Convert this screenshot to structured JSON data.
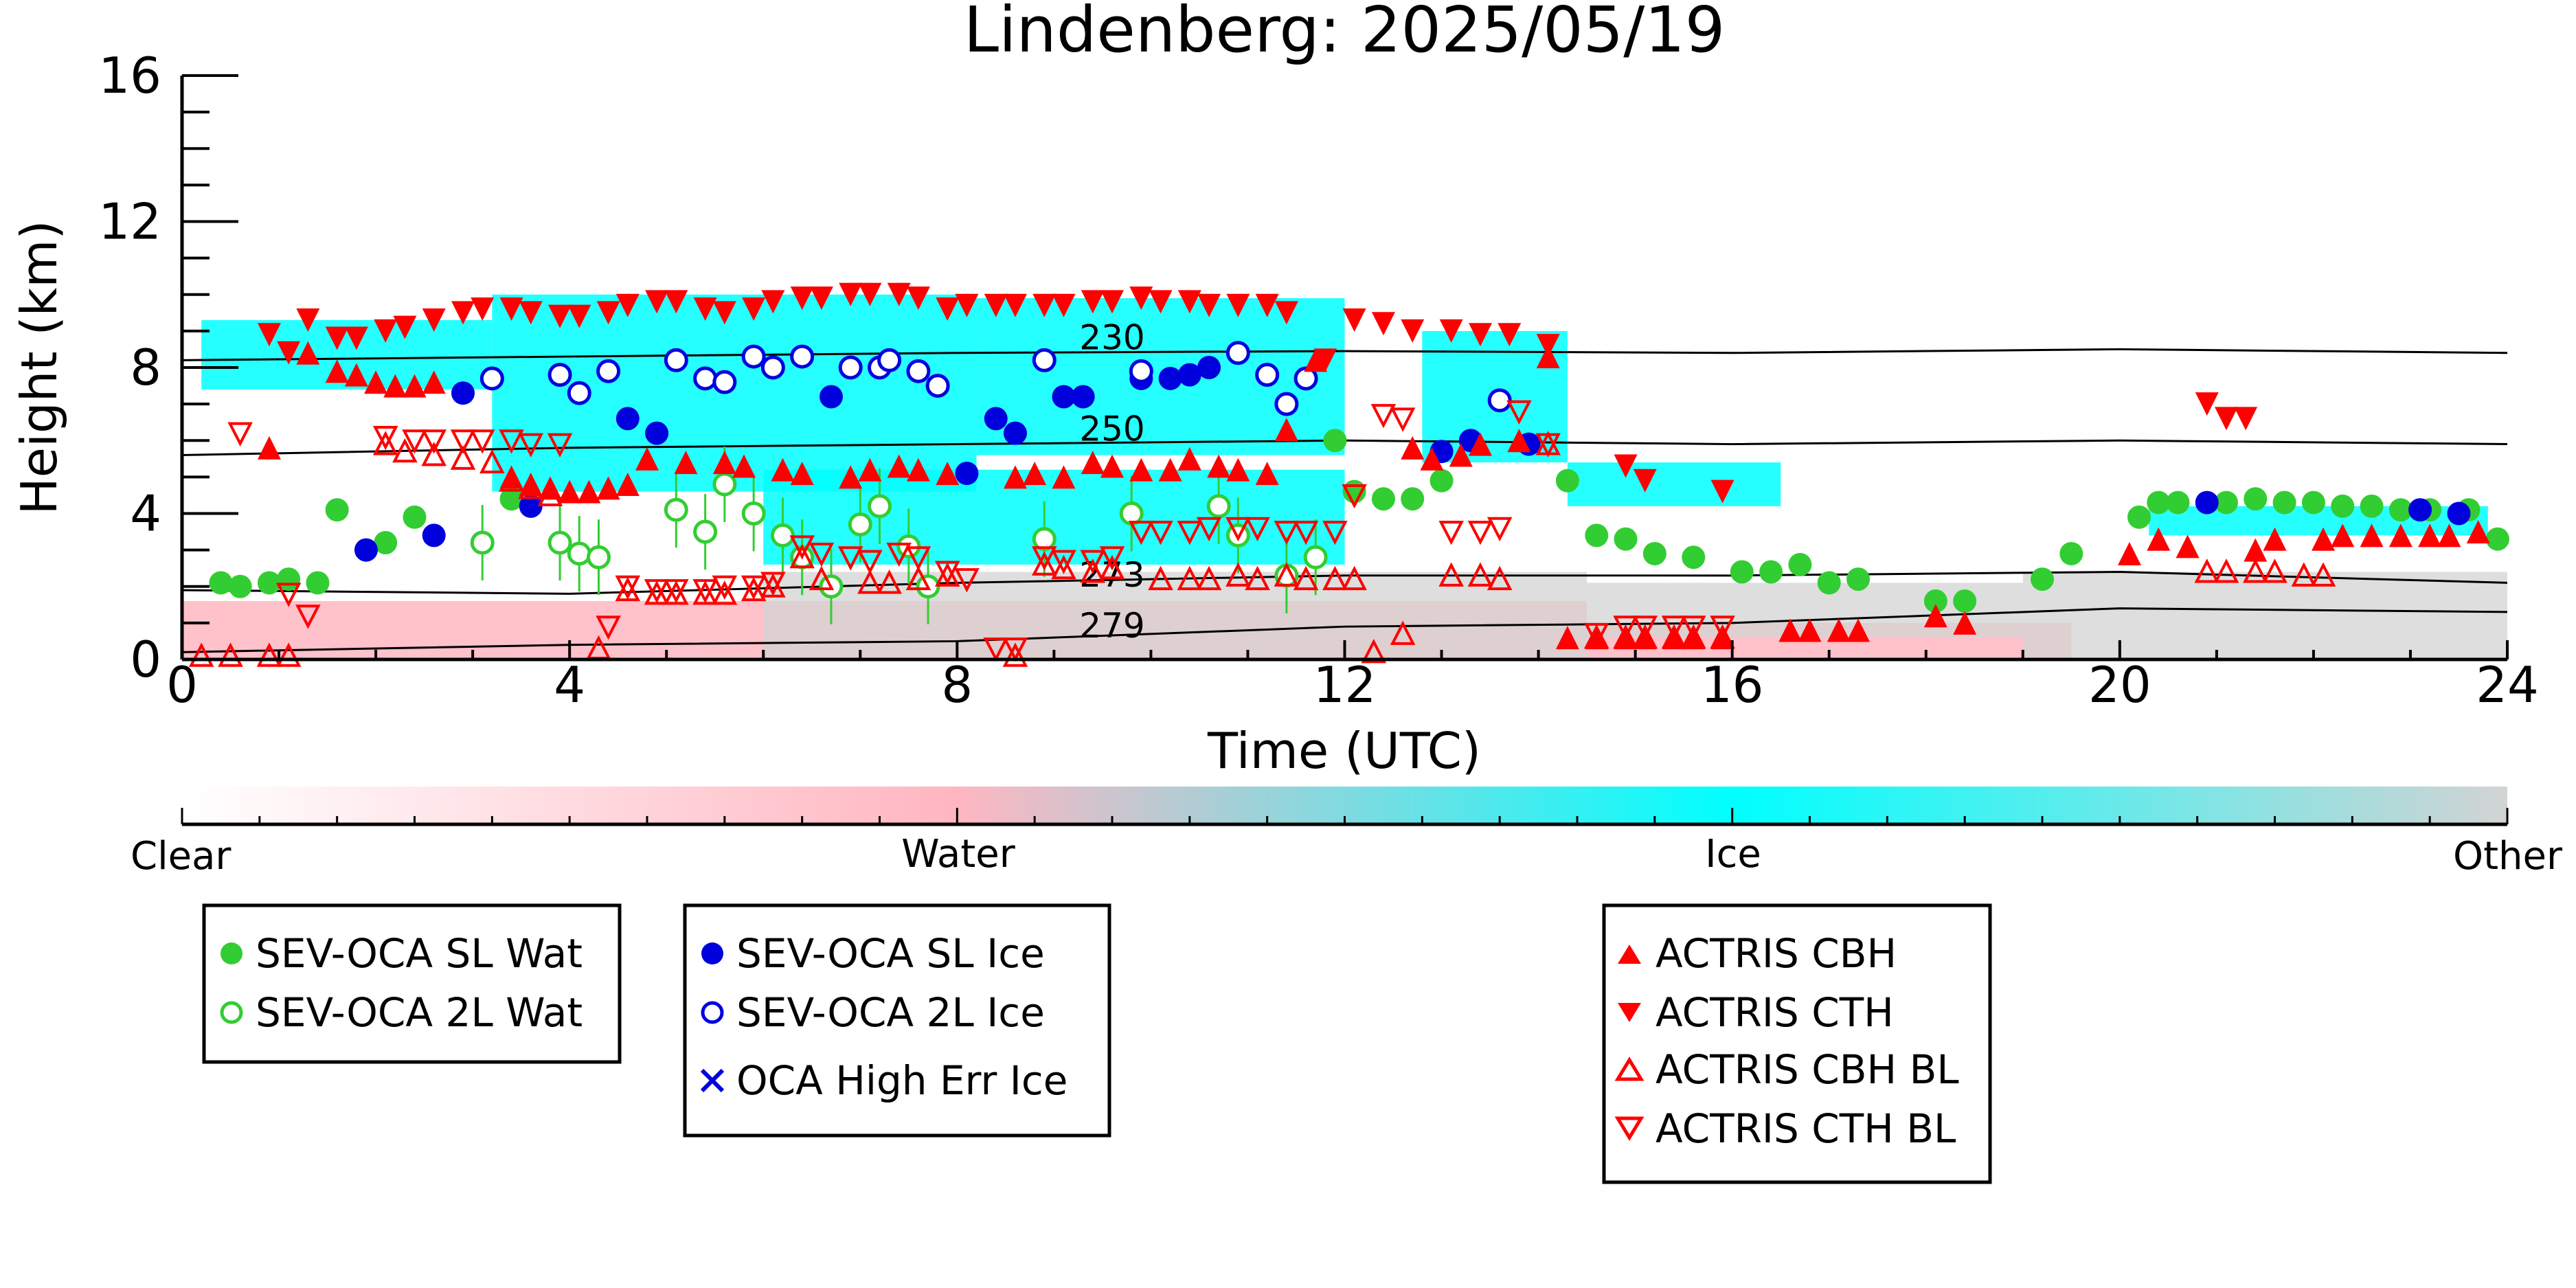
{
  "chart_data": {
    "type": "scatter",
    "title": "Lindenberg: 2025/05/19",
    "xlabel": "Time (UTC)",
    "ylabel": "Height (km)",
    "xlim": [
      0,
      24
    ],
    "ylim": [
      0,
      16
    ],
    "xticks": [
      0,
      4,
      8,
      12,
      16,
      20,
      24
    ],
    "yticks": [
      0,
      4,
      8,
      12,
      16
    ],
    "grid": false,
    "colors": {
      "sl_water": "#32cd32",
      "sl_ice": "#0000dd",
      "actris": "#ff0000",
      "ice_fill": "#00ffff",
      "water_fill": "#ffb6c1",
      "other_fill": "#d3d3d3"
    },
    "colorbar": {
      "labels": [
        "Clear",
        "Water",
        "Ice",
        "Other"
      ]
    },
    "background": {
      "bands": [
        {
          "class": "Ice",
          "x": [
            0.2,
            3.2
          ],
          "y": [
            7.4,
            9.3
          ]
        },
        {
          "class": "Ice",
          "x": [
            3.2,
            8.2
          ],
          "y": [
            4.6,
            10.0
          ]
        },
        {
          "class": "Ice",
          "x": [
            8.2,
            12.0
          ],
          "y": [
            5.6,
            9.9
          ]
        },
        {
          "class": "Ice",
          "x": [
            6.0,
            12.0
          ],
          "y": [
            2.6,
            5.2
          ]
        },
        {
          "class": "Ice",
          "x": [
            12.8,
            14.3
          ],
          "y": [
            5.4,
            9.0
          ]
        },
        {
          "class": "Ice",
          "x": [
            20.3,
            23.8
          ],
          "y": [
            3.4,
            4.2
          ]
        },
        {
          "class": "Ice",
          "x": [
            14.3,
            16.5
          ],
          "y": [
            4.2,
            5.4
          ]
        },
        {
          "class": "Water",
          "x": [
            0.0,
            14.5
          ],
          "y": [
            0.0,
            1.6
          ]
        },
        {
          "class": "Water",
          "x": [
            14.5,
            19.5
          ],
          "y": [
            0.0,
            1.0
          ]
        },
        {
          "class": "Other",
          "x": [
            6.0,
            14.5
          ],
          "y": [
            0.0,
            2.4
          ]
        },
        {
          "class": "Other",
          "x": [
            19.0,
            24.0
          ],
          "y": [
            0.0,
            2.4
          ]
        },
        {
          "class": "Other",
          "x": [
            14.5,
            19.0
          ],
          "y": [
            0.6,
            2.1
          ]
        }
      ],
      "contours": [
        {
          "label": "230",
          "label_x": 9.6,
          "label_y": 8.5,
          "x": [
            0,
            4,
            8,
            12,
            16,
            20,
            24
          ],
          "y": [
            8.2,
            8.3,
            8.4,
            8.45,
            8.4,
            8.5,
            8.4
          ]
        },
        {
          "label": "250",
          "label_x": 9.6,
          "label_y": 6.0,
          "x": [
            0,
            4,
            8,
            12,
            16,
            20,
            24
          ],
          "y": [
            5.6,
            5.8,
            5.9,
            6.0,
            5.9,
            6.0,
            5.9
          ]
        },
        {
          "label": "273",
          "label_x": 9.6,
          "label_y": 2.0,
          "x": [
            0,
            4,
            8,
            12,
            16,
            20,
            24
          ],
          "y": [
            1.9,
            1.8,
            2.1,
            2.3,
            2.3,
            2.4,
            2.1
          ]
        },
        {
          "label": "279",
          "label_x": 9.6,
          "label_y": 0.6,
          "x": [
            0,
            4,
            8,
            12,
            16,
            20,
            24
          ],
          "y": [
            0.2,
            0.4,
            0.5,
            0.9,
            1.0,
            1.4,
            1.3
          ]
        }
      ]
    },
    "series": [
      {
        "name": "SEV-OCA SL Wat",
        "marker": "filled-circle",
        "color": "#32cd32",
        "x": [
          0.4,
          0.6,
          0.9,
          1.1,
          1.4,
          1.6,
          2.1,
          2.4,
          3.4,
          11.9,
          12.1,
          12.4,
          12.7,
          13.0,
          14.3,
          14.6,
          14.9,
          15.2,
          15.6,
          16.1,
          16.4,
          16.7,
          17.0,
          17.3,
          18.1,
          18.4,
          19.2,
          19.5,
          20.2,
          20.4,
          20.6,
          21.1,
          21.4,
          21.7,
          22.0,
          22.3,
          22.6,
          22.9,
          23.2,
          23.6,
          23.9
        ],
        "y": [
          2.1,
          2.0,
          2.1,
          2.2,
          2.1,
          4.1,
          3.2,
          3.9,
          4.4,
          6.0,
          4.6,
          4.4,
          4.4,
          4.9,
          4.9,
          3.4,
          3.3,
          2.9,
          2.8,
          2.4,
          2.4,
          2.6,
          2.1,
          2.2,
          1.6,
          1.6,
          2.2,
          2.9,
          3.9,
          4.3,
          4.3,
          4.3,
          4.4,
          4.3,
          4.3,
          4.2,
          4.2,
          4.1,
          4.1,
          4.1,
          3.3
        ]
      },
      {
        "name": "SEV-OCA 2L Wat",
        "marker": "open-circle",
        "color": "#32cd32",
        "x": [
          3.1,
          3.9,
          4.1,
          4.3,
          5.1,
          5.4,
          5.6,
          5.9,
          6.2,
          6.4,
          6.7,
          7.0,
          7.2,
          7.5,
          7.7,
          8.9,
          9.8,
          10.7,
          10.9,
          11.4,
          11.7
        ],
        "y": [
          3.2,
          3.2,
          2.9,
          2.8,
          4.1,
          3.5,
          4.8,
          4.0,
          3.4,
          2.8,
          2.0,
          3.7,
          4.2,
          3.1,
          2.0,
          3.3,
          4.0,
          4.2,
          3.4,
          2.3,
          2.8
        ]
      },
      {
        "name": "SEV-OCA SL Ice",
        "marker": "filled-circle",
        "color": "#0000dd",
        "x": [
          1.9,
          2.6,
          2.9,
          3.6,
          4.6,
          4.9,
          6.7,
          8.1,
          8.4,
          8.6,
          9.1,
          9.3,
          9.9,
          10.2,
          10.4,
          10.6,
          13.0,
          13.3,
          13.9,
          20.9,
          23.1,
          23.5
        ],
        "y": [
          3.0,
          3.4,
          7.3,
          4.2,
          6.6,
          6.2,
          7.2,
          5.1,
          6.6,
          6.2,
          7.2,
          7.2,
          7.7,
          7.7,
          7.8,
          8.0,
          5.7,
          6.0,
          5.9,
          4.3,
          4.1,
          4.0
        ]
      },
      {
        "name": "SEV-OCA 2L Ice",
        "marker": "open-circle",
        "color": "#0000dd",
        "x": [
          3.2,
          3.9,
          4.1,
          4.4,
          5.1,
          5.4,
          5.6,
          5.9,
          6.1,
          6.4,
          6.9,
          7.2,
          7.3,
          7.6,
          7.8,
          8.9,
          9.9,
          10.9,
          11.2,
          11.4,
          11.6,
          13.6
        ],
        "y": [
          7.7,
          7.8,
          7.3,
          7.9,
          8.2,
          7.7,
          7.6,
          8.3,
          8.0,
          8.3,
          8.0,
          8.0,
          8.2,
          7.9,
          7.5,
          8.2,
          7.9,
          8.4,
          7.8,
          7.0,
          7.7,
          7.1
        ]
      },
      {
        "name": "OCA High Err Ice",
        "marker": "x",
        "color": "#0000dd",
        "x": [],
        "y": []
      },
      {
        "name": "ACTRIS CBH",
        "marker": "filled-triangle-up",
        "color": "#ff0000",
        "x": [
          0.9,
          1.3,
          1.6,
          1.8,
          2.0,
          2.2,
          2.4,
          2.6,
          3.4,
          3.6,
          3.8,
          4.0,
          4.2,
          4.4,
          4.6,
          4.8,
          5.2,
          5.6,
          5.8,
          6.2,
          6.4,
          6.9,
          7.1,
          7.4,
          7.6,
          7.9,
          8.6,
          8.8,
          9.1,
          9.4,
          9.6,
          9.9,
          10.2,
          10.4,
          10.7,
          10.9,
          11.2,
          11.4,
          11.7,
          12.7,
          12.9,
          13.2,
          13.4,
          13.8,
          14.1,
          14.3,
          14.6,
          14.9,
          15.1,
          15.4,
          15.6,
          15.9,
          16.6,
          16.8,
          17.1,
          17.3,
          18.1,
          18.4,
          20.1,
          20.4,
          20.7,
          21.4,
          21.6,
          22.1,
          22.3,
          22.6,
          22.9,
          23.2,
          23.4,
          23.7
        ],
        "y": [
          5.8,
          8.4,
          7.9,
          7.8,
          7.6,
          7.5,
          7.5,
          7.6,
          5.0,
          4.8,
          4.7,
          4.6,
          4.6,
          4.7,
          4.8,
          5.5,
          5.4,
          5.4,
          5.3,
          5.2,
          5.1,
          5.0,
          5.2,
          5.3,
          5.2,
          5.1,
          5.0,
          5.1,
          5.0,
          5.4,
          5.3,
          5.2,
          5.2,
          5.5,
          5.3,
          5.2,
          5.1,
          6.3,
          8.2,
          5.8,
          5.5,
          5.6,
          5.9,
          6.0,
          8.3,
          0.6,
          0.6,
          0.6,
          0.6,
          0.6,
          0.6,
          0.6,
          0.8,
          0.8,
          0.8,
          0.8,
          1.2,
          1.0,
          2.9,
          3.3,
          3.1,
          3.0,
          3.3,
          3.3,
          3.4,
          3.4,
          3.4,
          3.4,
          3.4,
          3.5
        ]
      },
      {
        "name": "ACTRIS CTH",
        "marker": "filled-triangle-down",
        "color": "#ff0000",
        "x": [
          0.9,
          1.1,
          1.3,
          1.6,
          1.8,
          2.1,
          2.3,
          2.6,
          2.9,
          3.1,
          3.4,
          3.6,
          3.9,
          4.1,
          4.4,
          4.6,
          4.9,
          5.1,
          5.4,
          5.6,
          5.9,
          6.1,
          6.4,
          6.6,
          6.9,
          7.1,
          7.4,
          7.6,
          7.9,
          8.1,
          8.4,
          8.6,
          8.9,
          9.1,
          9.4,
          9.6,
          9.9,
          10.1,
          10.4,
          10.6,
          10.9,
          11.2,
          11.4,
          11.8,
          12.1,
          12.4,
          12.7,
          13.1,
          13.4,
          13.7,
          14.1,
          14.9,
          15.1,
          15.9,
          20.9,
          21.1,
          21.3
        ],
        "y": [
          8.9,
          8.4,
          9.3,
          8.8,
          8.8,
          9.0,
          9.1,
          9.3,
          9.5,
          9.6,
          9.6,
          9.5,
          9.4,
          9.4,
          9.5,
          9.7,
          9.8,
          9.8,
          9.6,
          9.5,
          9.6,
          9.8,
          9.9,
          9.9,
          10.0,
          10.0,
          10.0,
          9.9,
          9.6,
          9.7,
          9.7,
          9.7,
          9.7,
          9.7,
          9.8,
          9.8,
          9.9,
          9.8,
          9.8,
          9.7,
          9.7,
          9.7,
          9.5,
          8.2,
          9.3,
          9.2,
          9.0,
          9.0,
          8.9,
          8.9,
          8.6,
          5.3,
          4.9,
          4.6,
          7.0,
          6.6,
          6.6
        ]
      },
      {
        "name": "ACTRIS CBH BL",
        "marker": "open-triangle-up",
        "color": "#ff0000",
        "x": [
          0.2,
          0.5,
          0.9,
          1.1,
          2.1,
          2.3,
          2.6,
          2.9,
          3.2,
          3.4,
          3.6,
          3.8,
          4.3,
          4.6,
          4.9,
          5.1,
          5.4,
          5.6,
          5.9,
          6.1,
          6.4,
          6.6,
          7.1,
          7.3,
          7.6,
          7.9,
          8.6,
          8.9,
          9.1,
          9.4,
          9.6,
          10.1,
          10.4,
          10.6,
          10.9,
          11.1,
          11.4,
          11.6,
          11.9,
          12.1,
          12.3,
          12.6,
          13.1,
          13.4,
          13.6,
          14.1,
          14.6,
          14.9,
          15.1,
          15.4,
          15.6,
          15.9,
          20.9,
          21.1,
          21.4,
          21.6,
          21.9,
          22.1
        ],
        "y": [
          0.1,
          0.1,
          0.1,
          0.1,
          5.9,
          5.7,
          5.6,
          5.5,
          5.4,
          4.9,
          4.7,
          4.5,
          0.3,
          1.9,
          1.8,
          1.8,
          1.8,
          1.8,
          1.9,
          2.0,
          2.8,
          2.2,
          2.1,
          2.1,
          2.2,
          2.3,
          0.1,
          2.6,
          2.5,
          2.4,
          2.5,
          2.2,
          2.2,
          2.2,
          2.3,
          2.2,
          2.3,
          2.2,
          2.2,
          2.2,
          0.2,
          0.7,
          2.3,
          2.3,
          2.2,
          5.9,
          0.6,
          0.6,
          0.6,
          0.6,
          0.6,
          0.6,
          2.4,
          2.4,
          2.4,
          2.4,
          2.3,
          2.3
        ]
      },
      {
        "name": "ACTRIS CTH BL",
        "marker": "open-triangle-down",
        "color": "#ff0000",
        "x": [
          0.6,
          1.1,
          1.3,
          2.1,
          2.4,
          2.6,
          2.9,
          3.1,
          3.4,
          3.6,
          3.9,
          4.4,
          4.6,
          4.9,
          5.1,
          5.4,
          5.6,
          5.9,
          6.1,
          6.4,
          6.6,
          6.9,
          7.1,
          7.4,
          7.6,
          7.9,
          8.1,
          8.4,
          8.6,
          8.9,
          9.1,
          9.4,
          9.6,
          9.9,
          10.1,
          10.4,
          10.6,
          10.9,
          11.1,
          11.4,
          11.6,
          11.9,
          12.1,
          12.4,
          12.6,
          13.1,
          13.4,
          13.6,
          13.8,
          14.1,
          14.6,
          14.9,
          15.1,
          15.4,
          15.6,
          15.9
        ],
        "y": [
          6.2,
          1.8,
          1.2,
          6.1,
          6.0,
          6.0,
          6.0,
          6.0,
          6.0,
          5.9,
          5.9,
          0.9,
          2.0,
          1.9,
          1.9,
          1.9,
          2.0,
          2.0,
          2.1,
          3.1,
          2.9,
          2.8,
          2.7,
          2.9,
          2.8,
          2.4,
          2.2,
          0.3,
          0.3,
          2.8,
          2.7,
          2.7,
          2.8,
          3.5,
          3.5,
          3.5,
          3.6,
          3.6,
          3.6,
          3.5,
          3.5,
          3.5,
          4.5,
          6.7,
          6.6,
          3.5,
          3.5,
          3.6,
          6.8,
          5.9,
          0.7,
          0.9,
          0.9,
          0.9,
          0.9,
          0.9
        ]
      }
    ]
  },
  "legend": {
    "water": [
      "SEV-OCA SL Wat",
      "SEV-OCA 2L Wat"
    ],
    "ice": [
      "SEV-OCA SL Ice",
      "SEV-OCA 2L Ice",
      "OCA High Err Ice"
    ],
    "actris": [
      "ACTRIS CBH",
      "ACTRIS CTH",
      "ACTRIS CBH BL",
      "ACTRIS CTH BL"
    ]
  }
}
